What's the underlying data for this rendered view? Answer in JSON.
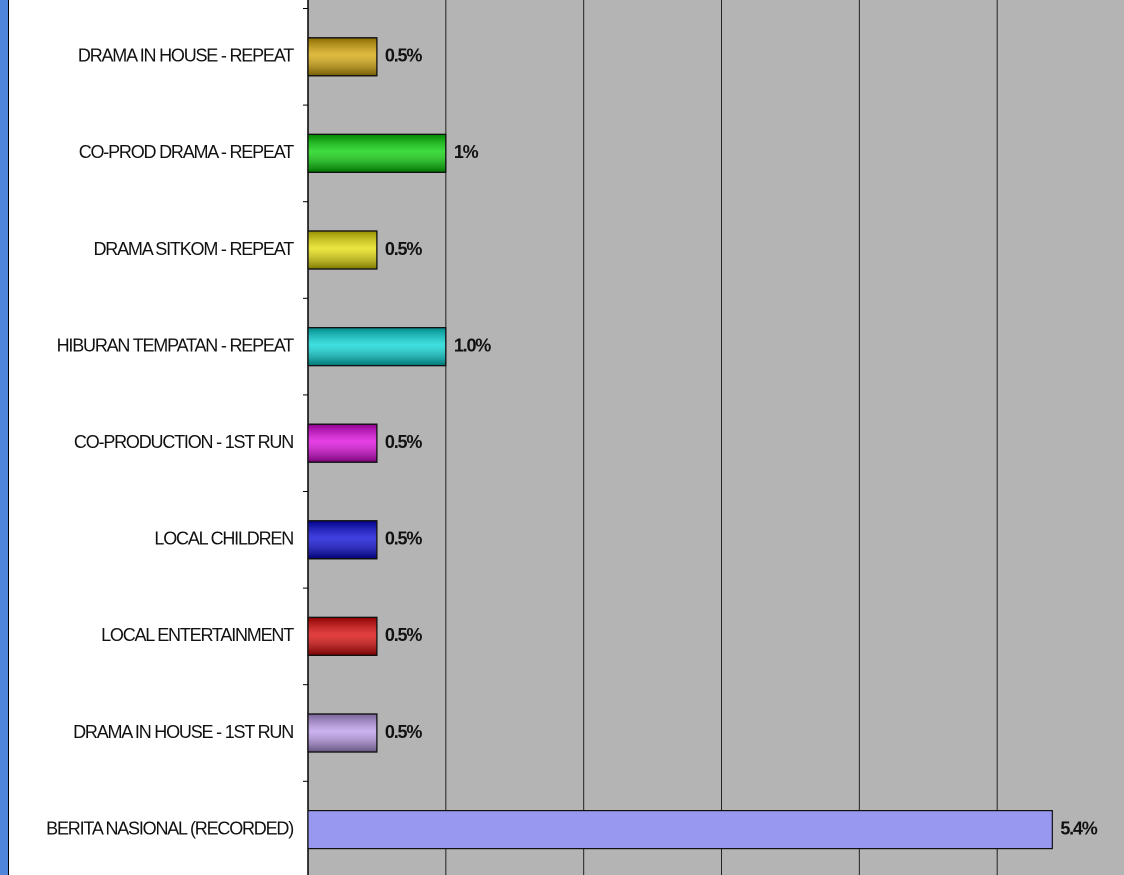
{
  "chart_data": {
    "type": "hbar",
    "categories": [
      "DRAMA IN HOUSE - REPEAT",
      "CO-PROD DRAMA - REPEAT",
      "DRAMA SITKOM - REPEAT",
      "HIBURAN TEMPATAN - REPEAT",
      "CO-PRODUCTION - 1ST RUN",
      "LOCAL CHILDREN",
      "LOCAL ENTERTAINMENT",
      "DRAMA IN HOUSE - 1ST RUN",
      "BERITA NASIONAL (RECORDED)"
    ],
    "values": [
      0.5,
      1,
      0.5,
      1.0,
      0.5,
      0.5,
      0.5,
      0.5,
      5.4
    ],
    "value_labels": [
      "0.5%",
      "1%",
      "0.5%",
      "1.0%",
      "0.5%",
      "0.5%",
      "0.5%",
      "0.5%",
      "5.4%"
    ],
    "colors": [
      "#d4a400",
      "#00d000",
      "#e4dc00",
      "#00d4d4",
      "#dc00dc",
      "#0000d4",
      "#d80000",
      "#b898e8",
      "#9898f0"
    ],
    "xlim": [
      0,
      5.92
    ],
    "xticks": [
      0,
      1,
      2,
      3,
      4,
      5
    ],
    "grid": true
  }
}
